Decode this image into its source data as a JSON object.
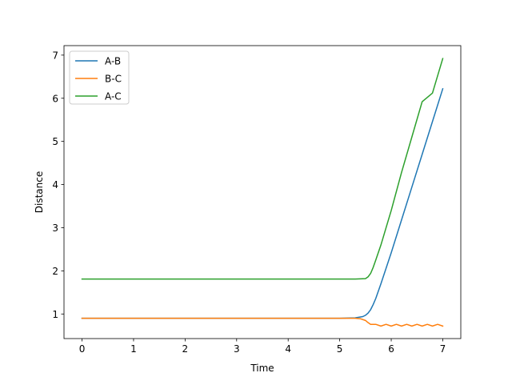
{
  "chart_data": {
    "type": "line",
    "title": "",
    "xlabel": "Time",
    "ylabel": "Distance",
    "xlim": [
      -0.35,
      7.35
    ],
    "ylim": [
      0.43,
      7.22
    ],
    "xticks": [
      0,
      1,
      2,
      3,
      4,
      5,
      6,
      7
    ],
    "yticks": [
      1,
      2,
      3,
      4,
      5,
      6,
      7
    ],
    "grid": false,
    "legend_position": "upper-left",
    "series": [
      {
        "name": "A-B",
        "color": "#1f77b4",
        "x": [
          0,
          1,
          2,
          3,
          4,
          5,
          5.3,
          5.45,
          5.5,
          5.55,
          5.6,
          5.65,
          5.7,
          5.8,
          5.9,
          6.0,
          6.2,
          6.4,
          6.6,
          6.8,
          7.0
        ],
        "y": [
          0.9,
          0.9,
          0.9,
          0.9,
          0.9,
          0.9,
          0.91,
          0.94,
          0.97,
          1.02,
          1.1,
          1.22,
          1.36,
          1.7,
          2.06,
          2.42,
          3.18,
          3.94,
          4.7,
          5.46,
          6.22
        ]
      },
      {
        "name": "B-C",
        "color": "#ff7f0e",
        "x": [
          0,
          1,
          2,
          3,
          4,
          5,
          5.3,
          5.4,
          5.5,
          5.55,
          5.6,
          5.7,
          5.8,
          5.9,
          6.0,
          6.1,
          6.2,
          6.3,
          6.4,
          6.5,
          6.6,
          6.7,
          6.8,
          6.9,
          7.0
        ],
        "y": [
          0.9,
          0.9,
          0.9,
          0.9,
          0.9,
          0.9,
          0.9,
          0.89,
          0.85,
          0.8,
          0.76,
          0.76,
          0.72,
          0.76,
          0.72,
          0.76,
          0.72,
          0.76,
          0.72,
          0.76,
          0.72,
          0.76,
          0.72,
          0.76,
          0.72
        ]
      },
      {
        "name": "A-C",
        "color": "#2ca02c",
        "x": [
          0,
          1,
          2,
          3,
          4,
          5,
          5.3,
          5.5,
          5.55,
          5.6,
          5.65,
          5.7,
          5.8,
          5.9,
          6.0,
          6.2,
          6.4,
          6.6,
          6.8,
          7.0
        ],
        "y": [
          1.81,
          1.81,
          1.81,
          1.81,
          1.81,
          1.81,
          1.81,
          1.82,
          1.86,
          1.94,
          2.08,
          2.25,
          2.6,
          3.0,
          3.4,
          4.28,
          5.1,
          5.92,
          6.12,
          6.92
        ]
      }
    ]
  }
}
